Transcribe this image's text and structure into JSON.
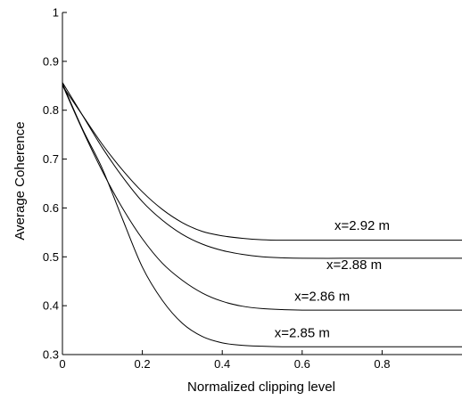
{
  "chart_data": {
    "type": "line",
    "title": "",
    "xlabel": "Normalized clipping level",
    "ylabel": "Average Coherence",
    "xlim": [
      0,
      1
    ],
    "ylim": [
      0.3,
      1
    ],
    "xticks": [
      0,
      0.2,
      0.4,
      0.6,
      0.8
    ],
    "xtick_labels": [
      "0",
      "0.2",
      "0.4",
      "0.6",
      "0.8"
    ],
    "yticks": [
      0.3,
      0.4,
      0.5,
      0.6,
      0.7,
      0.8,
      0.9,
      1
    ],
    "ytick_labels": [
      "0.3",
      "0.4",
      "0.5",
      "0.6",
      "0.7",
      "0.8",
      "0.9",
      "1"
    ],
    "grid": false,
    "colors": {
      "line": "#000000",
      "axis": "#000000",
      "background": "#ffffff"
    },
    "series": [
      {
        "label": "x=2.92 m",
        "x": [
          0,
          0.05,
          0.1,
          0.15,
          0.2,
          0.25,
          0.3,
          0.35,
          0.4,
          0.45,
          0.5,
          0.55,
          0.6,
          0.7,
          0.8,
          1.0
        ],
        "y": [
          0.85,
          0.79,
          0.73,
          0.678,
          0.633,
          0.597,
          0.57,
          0.552,
          0.543,
          0.538,
          0.535,
          0.534,
          0.534,
          0.534,
          0.534,
          0.534
        ],
        "label_at": [
          0.75,
          0.555
        ]
      },
      {
        "label": "x=2.88 m",
        "x": [
          0,
          0.05,
          0.1,
          0.15,
          0.2,
          0.25,
          0.3,
          0.35,
          0.4,
          0.45,
          0.5,
          0.55,
          0.6,
          0.7,
          0.8,
          1.0
        ],
        "y": [
          0.857,
          0.79,
          0.723,
          0.664,
          0.613,
          0.575,
          0.546,
          0.526,
          0.513,
          0.505,
          0.5,
          0.498,
          0.497,
          0.497,
          0.497,
          0.497
        ],
        "label_at": [
          0.73,
          0.475
        ]
      },
      {
        "label": "x=2.86 m",
        "x": [
          0,
          0.05,
          0.1,
          0.15,
          0.2,
          0.25,
          0.3,
          0.35,
          0.4,
          0.45,
          0.5,
          0.55,
          0.6,
          0.7,
          0.8,
          1.0
        ],
        "y": [
          0.852,
          0.76,
          0.675,
          0.6,
          0.537,
          0.487,
          0.452,
          0.426,
          0.409,
          0.399,
          0.394,
          0.392,
          0.391,
          0.391,
          0.391,
          0.391
        ],
        "label_at": [
          0.65,
          0.41
        ]
      },
      {
        "label": "x=2.85 m",
        "x": [
          0,
          0.05,
          0.1,
          0.15,
          0.2,
          0.25,
          0.3,
          0.35,
          0.4,
          0.45,
          0.5,
          0.55,
          0.6,
          0.7,
          0.8,
          1.0
        ],
        "y": [
          0.855,
          0.762,
          0.68,
          0.578,
          0.479,
          0.411,
          0.364,
          0.337,
          0.324,
          0.319,
          0.317,
          0.316,
          0.316,
          0.316,
          0.316,
          0.316
        ],
        "label_at": [
          0.6,
          0.336
        ]
      }
    ]
  }
}
